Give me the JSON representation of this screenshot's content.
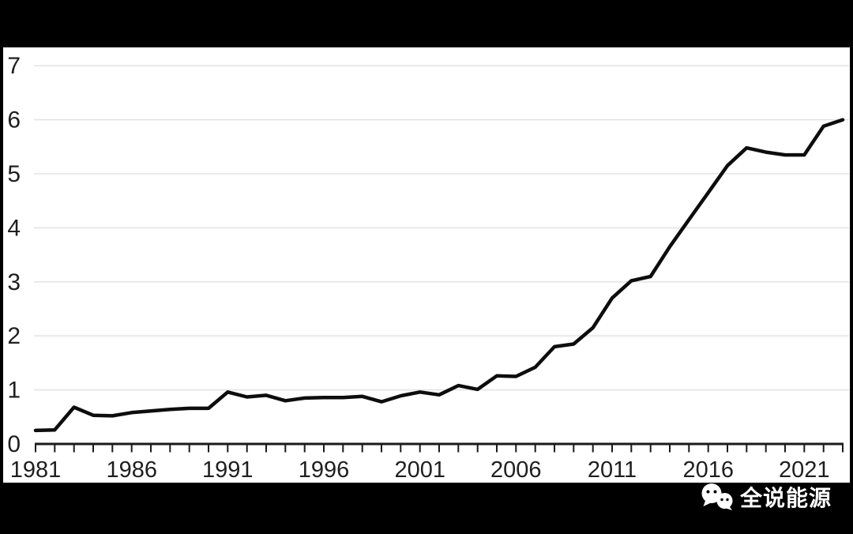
{
  "frame": {
    "top_bar_color": "#000000",
    "bottom_bar_color": "#000000",
    "panel_color": "#ffffff",
    "watermark": {
      "icon": "wechat-icon",
      "text": "全说能源",
      "text_color": "#ffffff"
    }
  },
  "chart_data": {
    "type": "line",
    "title": "",
    "xlabel": "",
    "ylabel": "",
    "x": [
      1981,
      1982,
      1983,
      1984,
      1985,
      1986,
      1987,
      1988,
      1989,
      1990,
      1991,
      1992,
      1993,
      1994,
      1995,
      1996,
      1997,
      1998,
      1999,
      2000,
      2001,
      2002,
      2003,
      2004,
      2005,
      2006,
      2007,
      2008,
      2009,
      2010,
      2011,
      2012,
      2013,
      2014,
      2015,
      2016,
      2017,
      2018,
      2019,
      2020,
      2021,
      2022,
      2023
    ],
    "values": [
      0.25,
      0.26,
      0.68,
      0.53,
      0.52,
      0.58,
      0.61,
      0.64,
      0.66,
      0.66,
      0.96,
      0.87,
      0.9,
      0.8,
      0.85,
      0.86,
      0.86,
      0.88,
      0.78,
      0.89,
      0.96,
      0.91,
      1.08,
      1.01,
      1.26,
      1.25,
      1.42,
      1.8,
      1.85,
      2.15,
      2.7,
      3.02,
      3.1,
      3.65,
      4.15,
      4.65,
      5.15,
      5.48,
      5.4,
      5.35,
      5.35,
      5.88,
      6.0
    ],
    "ylim": [
      0,
      7
    ],
    "yticks": [
      0,
      1,
      2,
      3,
      4,
      5,
      6,
      7
    ],
    "xtick_labels": [
      "1981",
      "1986",
      "1991",
      "1996",
      "2001",
      "2006",
      "2011",
      "2016",
      "2021"
    ],
    "grid": "horizontal",
    "grid_color": "#e4e4e4",
    "line_color": "#0d0d0d",
    "axis_color": "#1a1a1a",
    "label_color": "#1f1f1f",
    "legend": "none"
  }
}
